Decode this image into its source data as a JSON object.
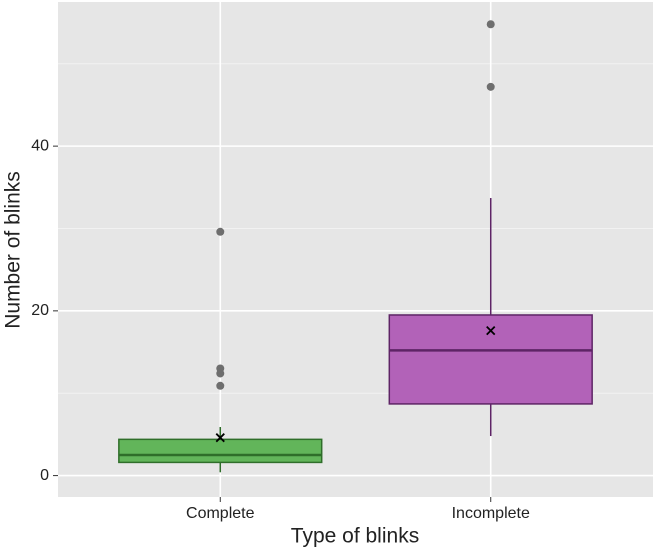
{
  "chart_data": {
    "type": "box",
    "x_label": "Type of blinks",
    "y_label": "Number of blinks",
    "categories": [
      "Complete",
      "Incomplete"
    ],
    "boxes": [
      {
        "whislo": 0.4,
        "q1": 1.6,
        "median": 2.5,
        "q3": 4.4,
        "whishi": 5.9,
        "mean": 4.6,
        "outliers": [
          29.6,
          13,
          12.4,
          10.9
        ],
        "color": "#62b55a",
        "edge": "#2f6e2a"
      },
      {
        "whislo": 4.8,
        "q1": 8.7,
        "median": 15.2,
        "q3": 19.5,
        "whishi": 33.7,
        "mean": 17.6,
        "outliers": [
          47.2,
          54.8
        ],
        "color": "#b262b8",
        "edge": "#5e2466"
      }
    ],
    "ylim": [
      -2.6,
      57.5
    ],
    "yticks": [
      0,
      20,
      40
    ],
    "minor_yticks": [
      10,
      30,
      50
    ],
    "grid": true
  }
}
